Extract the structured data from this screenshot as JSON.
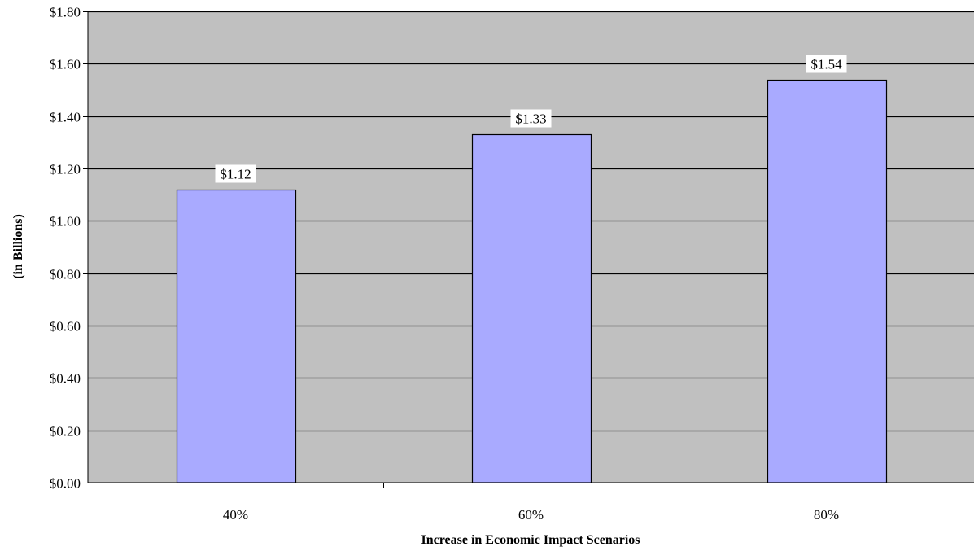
{
  "chart_data": {
    "type": "bar",
    "title": "",
    "xlabel": "Increase in Economic Impact Scenarios",
    "ylabel": "(in Billions)",
    "categories": [
      "40%",
      "60%",
      "80%"
    ],
    "values": [
      1.12,
      1.33,
      1.54
    ],
    "data_labels": [
      "$1.12",
      "$1.33",
      "$1.54"
    ],
    "ylim": [
      0,
      1.8
    ],
    "yticks": [
      0,
      0.2,
      0.4,
      0.6,
      0.8,
      1.0,
      1.2,
      1.4,
      1.6,
      1.8
    ],
    "ytick_labels": [
      "$0.00",
      "$0.20",
      "$0.40",
      "$0.60",
      "$0.80",
      "$1.00",
      "$1.20",
      "$1.40",
      "$1.60",
      "$1.80"
    ],
    "grid": true,
    "legend": "none",
    "colors": {
      "plot_background": "#c0c0c0",
      "bar_fill": "#a9aaff",
      "bar_stroke": "#000000",
      "grid": "#000000",
      "data_label_background": "#ffffff"
    }
  }
}
